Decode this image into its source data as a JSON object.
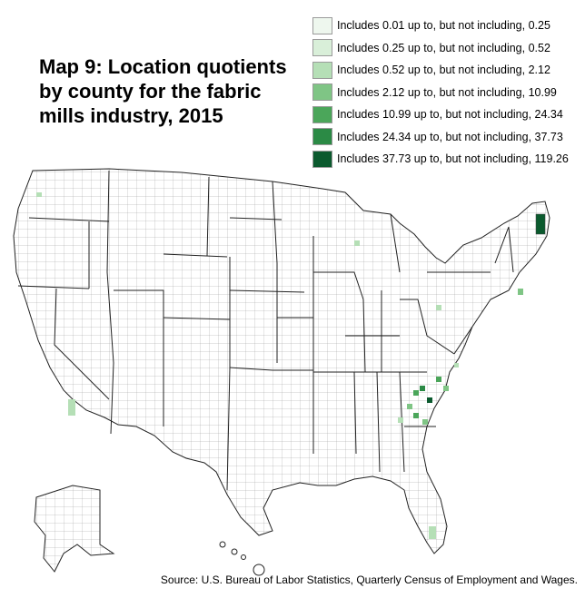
{
  "title": "Map 9: Location quotients by county for the fabric mills industry, 2015",
  "legend": [
    {
      "label": "Includes 0.01 up to, but not including, 0.25",
      "color": "#eef7ee"
    },
    {
      "label": "Includes 0.25 up to, but not including, 0.52",
      "color": "#d9efd9"
    },
    {
      "label": "Includes 0.52 up to, but not including, 2.12",
      "color": "#b5dfb6"
    },
    {
      "label": "Includes 2.12 up to, but not including, 10.99",
      "color": "#7fc585"
    },
    {
      "label": "Includes 10.99 up to, but not including, 24.34",
      "color": "#4ba65a"
    },
    {
      "label": "Includes 24.34 up to, but not including, 37.73",
      "color": "#2b8a45"
    },
    {
      "label": "Includes 37.73 up to, but not including, 119.26",
      "color": "#0b5a2e"
    }
  ],
  "source": "Source: U.S. Bureau of Labor Statistics, Quarterly Census of Employment and Wages.",
  "colors": {
    "county_border": "#777777",
    "state_border": "#222222",
    "no_data": "#ffffff"
  }
}
